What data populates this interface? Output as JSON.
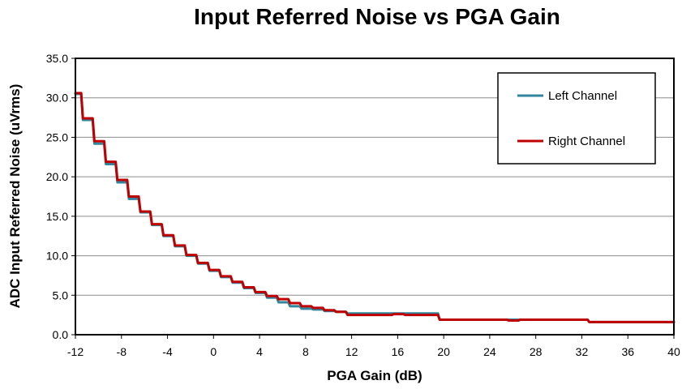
{
  "chart_data": {
    "type": "line",
    "title": "Input Referred Noise vs PGA Gain",
    "xlabel": "PGA Gain (dB)",
    "ylabel": "ADC Input Referred Noise (uVrms)",
    "xlim": [
      -12,
      40
    ],
    "ylim": [
      0,
      35
    ],
    "x_ticks": [
      "-12",
      "-8",
      "-4",
      "0",
      "4",
      "8",
      "12",
      "16",
      "20",
      "24",
      "28",
      "32",
      "36",
      "40"
    ],
    "y_ticks": [
      "0.0",
      "5.0",
      "10.0",
      "15.0",
      "20.0",
      "25.0",
      "30.0",
      "35.0"
    ],
    "grid": "horizontal",
    "legend_position": "top-right",
    "x": [
      -12,
      -11,
      -10,
      -9,
      -8,
      -7,
      -6,
      -5,
      -4,
      -3,
      -2,
      -1,
      0,
      1,
      2,
      3,
      4,
      5,
      6,
      7,
      8,
      9,
      10,
      11,
      12,
      13,
      14,
      15,
      16,
      17,
      18,
      19,
      20,
      21,
      22,
      23,
      24,
      25,
      26,
      27,
      28,
      29,
      30,
      31,
      32,
      33,
      34,
      35,
      36,
      37,
      38,
      39,
      40
    ],
    "series": [
      {
        "name": "Left Channel",
        "color": "#31859C",
        "values": [
          30.5,
          27.2,
          24.2,
          21.6,
          19.3,
          17.2,
          15.5,
          13.9,
          12.5,
          11.2,
          10.0,
          9.0,
          8.1,
          7.3,
          6.6,
          5.9,
          5.3,
          4.7,
          4.1,
          3.6,
          3.3,
          3.2,
          3.0,
          2.9,
          2.7,
          2.7,
          2.7,
          2.7,
          2.7,
          2.7,
          2.7,
          2.7,
          1.9,
          1.9,
          1.9,
          1.9,
          1.9,
          1.9,
          1.9,
          1.9,
          1.9,
          1.9,
          1.9,
          1.9,
          1.9,
          1.6,
          1.6,
          1.6,
          1.6,
          1.6,
          1.6,
          1.6,
          1.6
        ]
      },
      {
        "name": "Right Channel",
        "color": "#C00000",
        "values": [
          30.6,
          27.4,
          24.5,
          21.9,
          19.6,
          17.5,
          15.6,
          14.0,
          12.6,
          11.3,
          10.1,
          9.1,
          8.2,
          7.4,
          6.7,
          6.0,
          5.4,
          4.9,
          4.5,
          4.0,
          3.6,
          3.4,
          3.1,
          2.9,
          2.5,
          2.5,
          2.5,
          2.5,
          2.6,
          2.5,
          2.5,
          2.5,
          1.9,
          1.9,
          1.9,
          1.9,
          1.9,
          1.9,
          1.8,
          1.9,
          1.9,
          1.9,
          1.9,
          1.9,
          1.9,
          1.6,
          1.6,
          1.6,
          1.6,
          1.6,
          1.6,
          1.6,
          1.6
        ]
      }
    ]
  }
}
